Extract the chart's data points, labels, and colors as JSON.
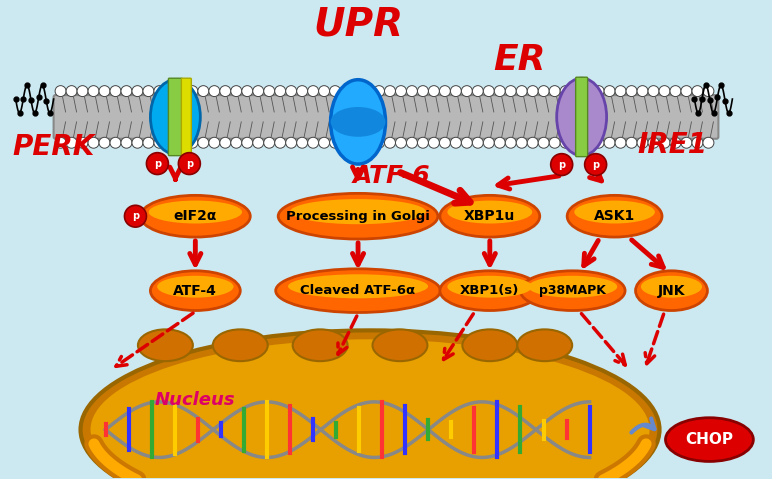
{
  "bg_color": "#cce8f0",
  "title_upr": "UPR",
  "title_er": "ER",
  "label_perk": "PERK",
  "label_atf6": "ATF-6",
  "label_ire1": "IRE1",
  "label_eif2a": "eIF2α",
  "label_atf4": "ATF-4",
  "label_processing": "Processing in Golgi",
  "label_cleaved": "Cleaved ATF-6α",
  "label_xbp1u": "XBP1u",
  "label_ask1": "ASK1",
  "label_xbp1s": "XBP1(s)",
  "label_p38mapk": "p38MAPK",
  "label_jnk": "JNK",
  "label_nucleus": "Nucleus",
  "label_chop": "CHOP",
  "red": "#dd0000",
  "orange_grad1": "#ff9900",
  "orange_grad2": "#ff6600",
  "nucleus_gold": "#e8a000",
  "nucleus_gold2": "#c87800",
  "perk_blue": "#00aaee",
  "perk_green": "#88cc44",
  "perk_yellow": "#dddd00",
  "ire1_purple": "#aa88cc",
  "ire1_green": "#88cc44",
  "atf6_blue": "#22aaff",
  "membrane_gray": "#b8b8b8",
  "membrane_line": "#888888",
  "dna_gray": "#888888"
}
